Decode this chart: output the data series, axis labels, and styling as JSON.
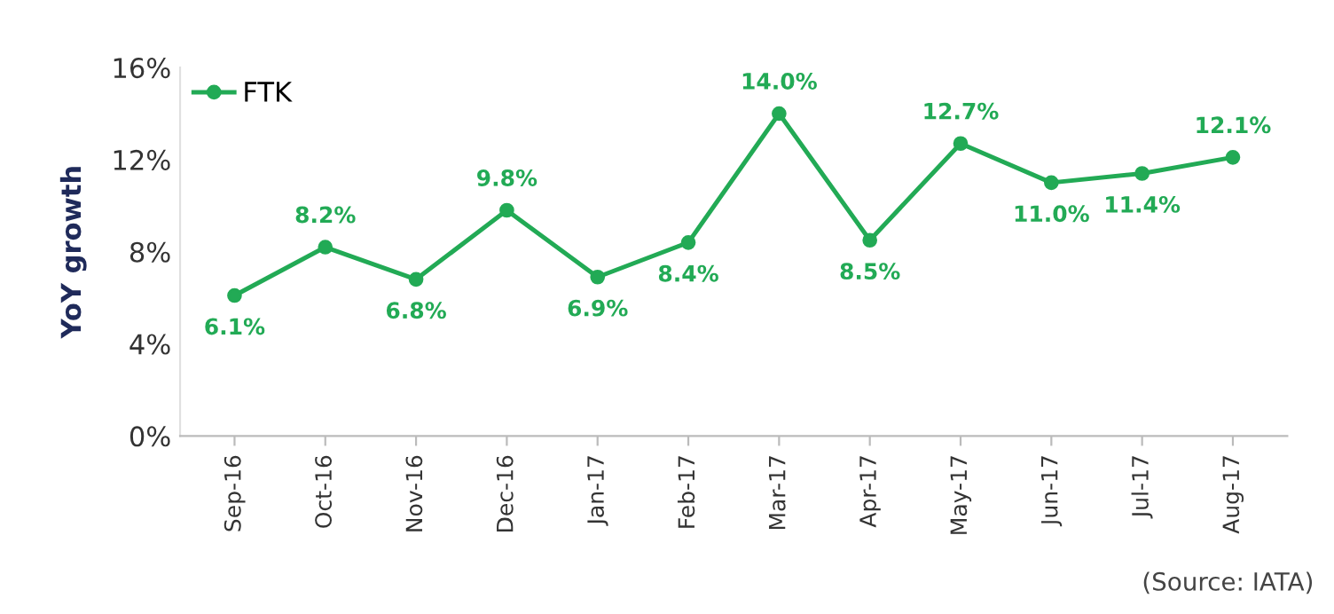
{
  "chart_data": {
    "type": "line",
    "ylabel": "YoY growth",
    "categories": [
      "Sep-16",
      "Oct-16",
      "Nov-16",
      "Dec-16",
      "Jan-17",
      "Feb-17",
      "Mar-17",
      "Apr-17",
      "May-17",
      "Jun-17",
      "Jul-17",
      "Aug-17"
    ],
    "series": [
      {
        "name": "FTK",
        "color": "#22aa55",
        "values": [
          6.1,
          8.2,
          6.8,
          9.8,
          6.9,
          8.4,
          14.0,
          8.5,
          12.7,
          11.0,
          11.4,
          12.1
        ],
        "value_labels": [
          "6.1%",
          "8.2%",
          "6.8%",
          "9.8%",
          "6.9%",
          "8.4%",
          "14.0%",
          "8.5%",
          "12.7%",
          "11.0%",
          "11.4%",
          "12.1%"
        ]
      }
    ],
    "ylim": [
      0,
      16
    ],
    "yticks": [
      {
        "value": 0,
        "label": "0%"
      },
      {
        "value": 4,
        "label": "4%"
      },
      {
        "value": 8,
        "label": "8%"
      },
      {
        "value": 12,
        "label": "12%"
      },
      {
        "value": 16,
        "label": "16%"
      }
    ],
    "grid": false,
    "legend": "top left",
    "marker": "circle",
    "line_style": "solid",
    "annotations": [
      "(Source: IATA)"
    ]
  }
}
